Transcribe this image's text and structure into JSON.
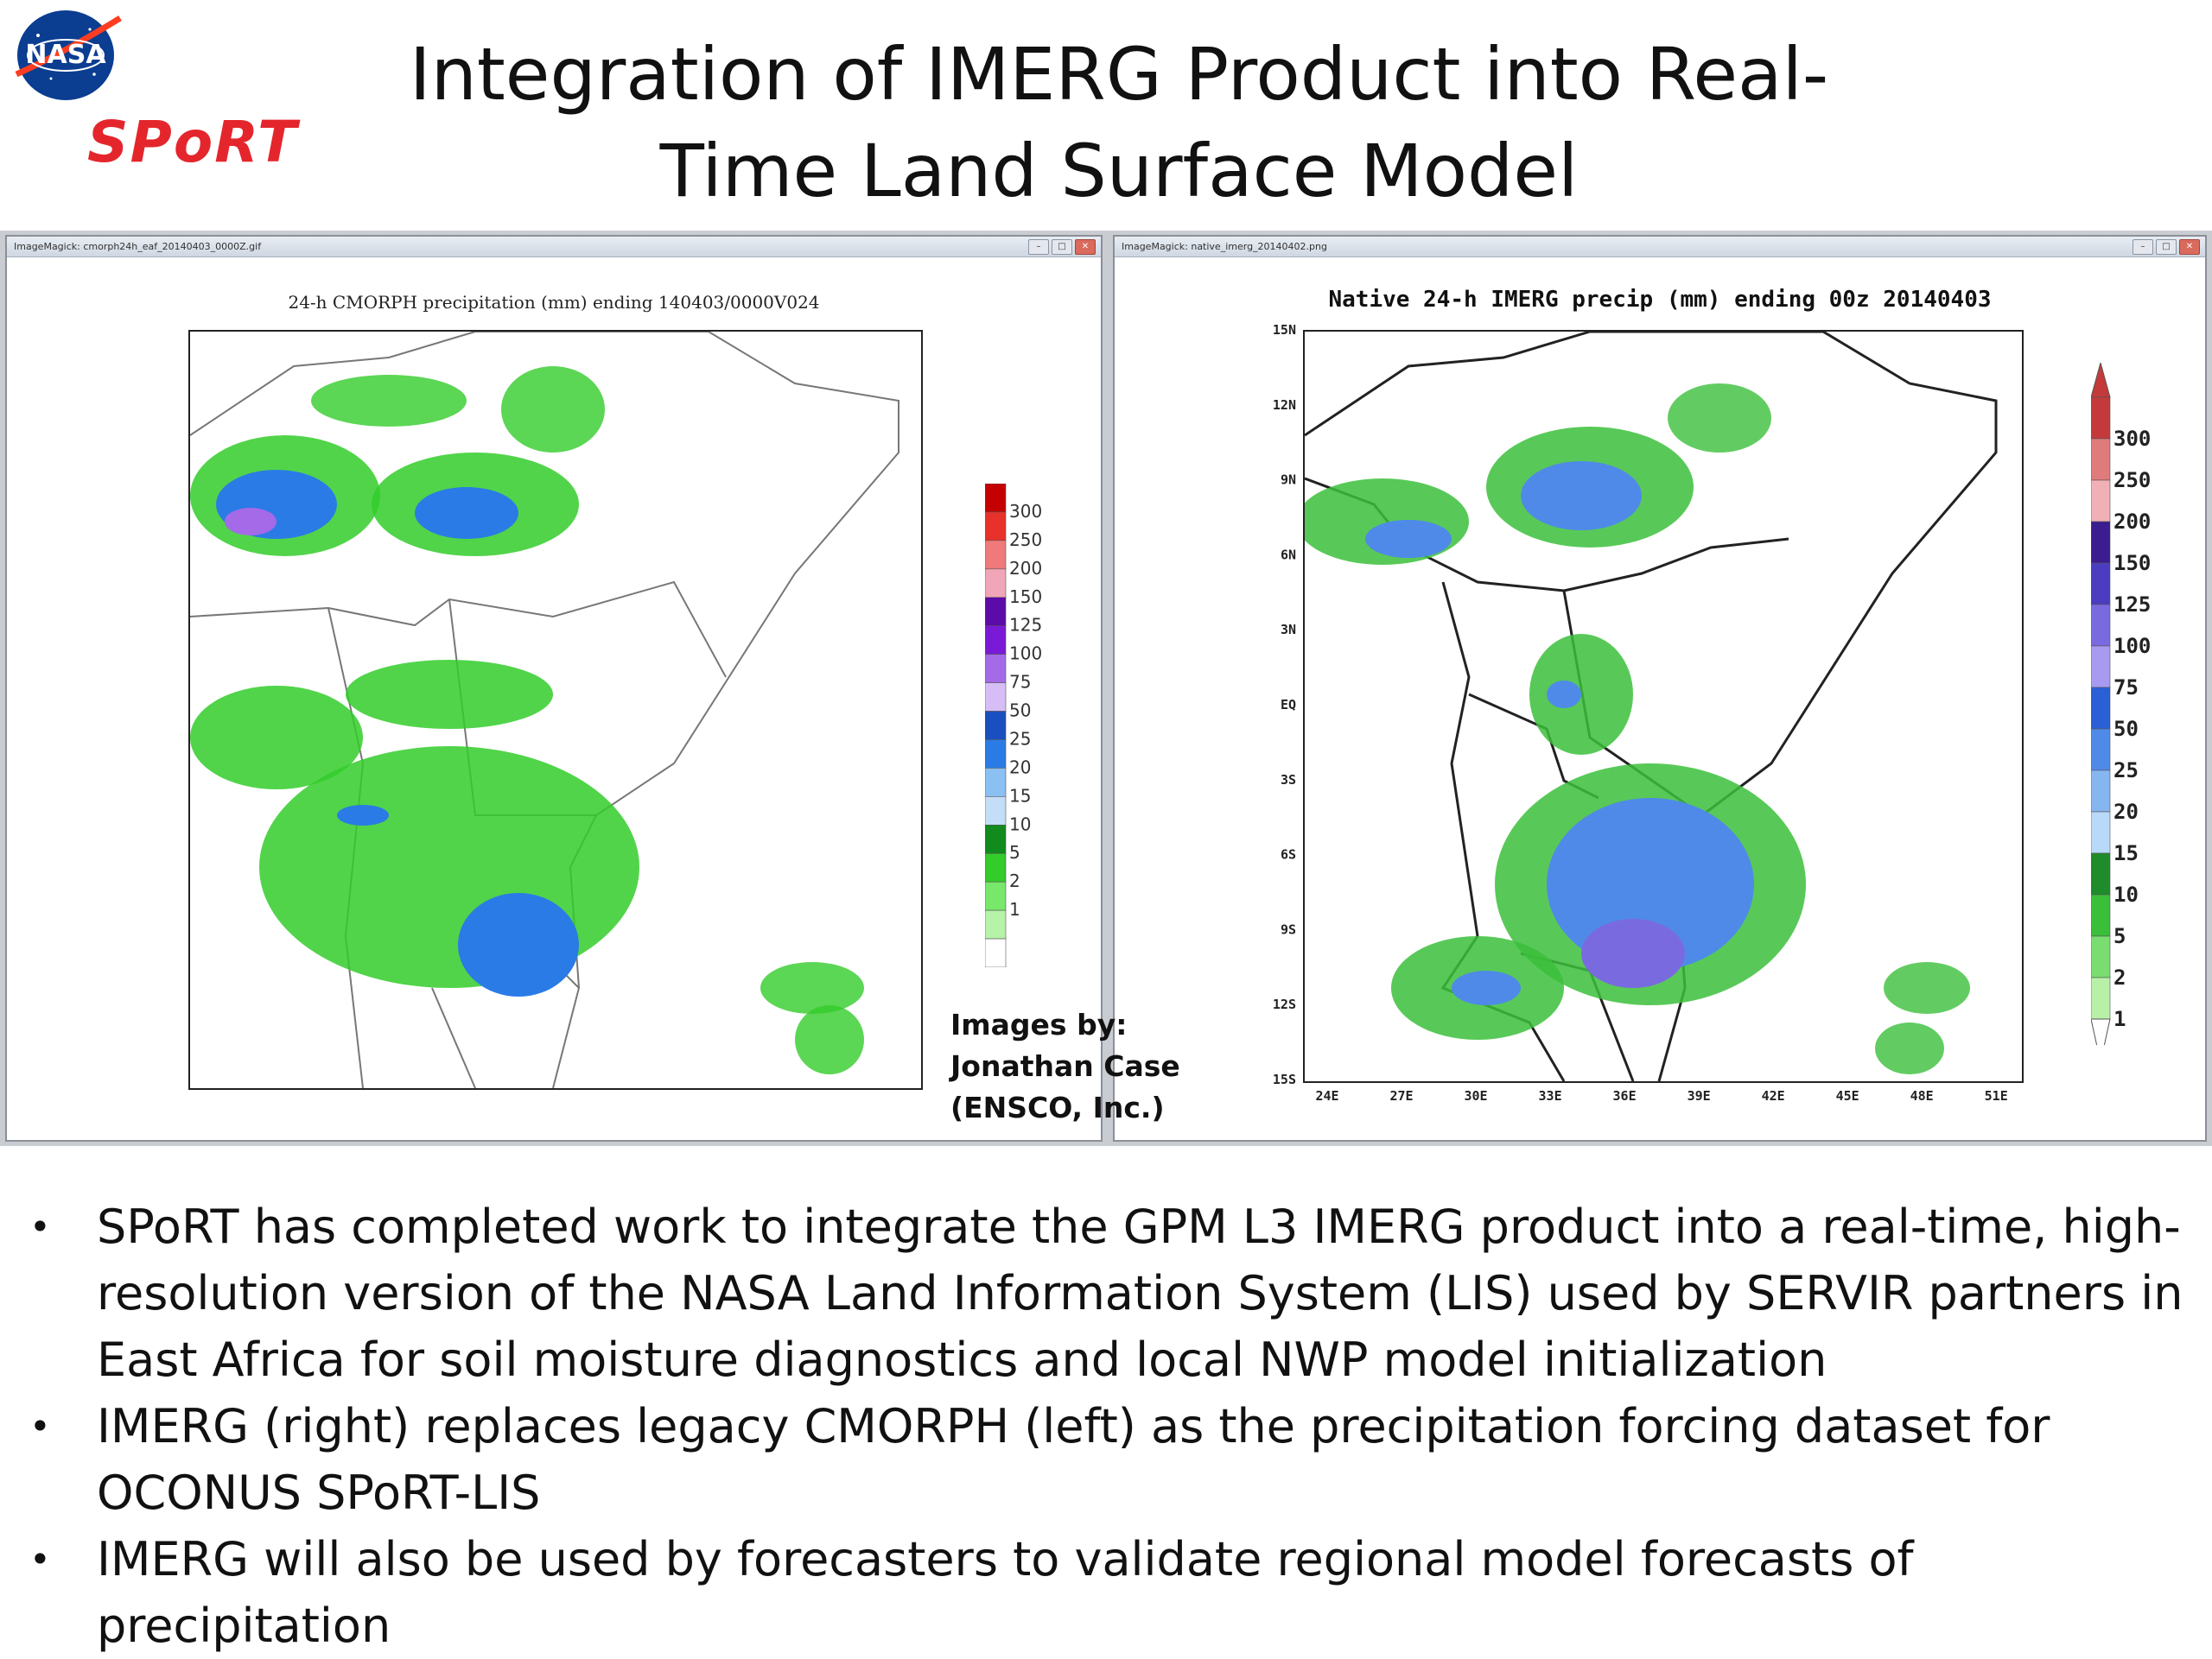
{
  "slide": {
    "title_line1": "Integration of IMERG Product into Real-",
    "title_line2": "Time Land Surface Model",
    "logos": {
      "nasa": "NASA",
      "sport": "SPoRT"
    }
  },
  "left_window": {
    "titlebar": "ImageMagick: cmorph24h_eaf_20140403_0000Z.gif",
    "plot_title": "24-h CMORPH precipitation (mm) ending 140403/0000V024",
    "colorbar_labels": [
      "300",
      "250",
      "200",
      "150",
      "125",
      "100",
      "75",
      "50",
      "25",
      "20",
      "15",
      "10",
      "5",
      "2",
      "1"
    ],
    "colorbar_colors": [
      "#c40000",
      "#e8312a",
      "#f07a7a",
      "#f1a5b8",
      "#5c0aa8",
      "#7a1ad6",
      "#a46ae8",
      "#d7bdf5",
      "#1a4fbf",
      "#2a7be6",
      "#8bc0f2",
      "#c5def7",
      "#118a1e",
      "#33cc2a",
      "#77e86a",
      "#b6f2a8",
      "#ffffff"
    ]
  },
  "right_window": {
    "titlebar": "ImageMagick: native_imerg_20140402.png",
    "plot_title": "Native 24-h IMERG precip (mm) ending 00z 20140403",
    "y_ticks": [
      "15N",
      "12N",
      "9N",
      "6N",
      "3N",
      "EQ",
      "3S",
      "6S",
      "9S",
      "12S",
      "15S"
    ],
    "x_ticks": [
      "24E",
      "27E",
      "30E",
      "33E",
      "36E",
      "39E",
      "42E",
      "45E",
      "48E",
      "51E"
    ],
    "colorbar_labels": [
      "300",
      "250",
      "200",
      "150",
      "125",
      "100",
      "75",
      "50",
      "25",
      "20",
      "15",
      "10",
      "5",
      "2",
      "1"
    ],
    "colorbar_colors": [
      "#c43a3a",
      "#e07b7b",
      "#f0b0b5",
      "#3b1d8f",
      "#4b3cc0",
      "#7a6ae0",
      "#a79af0",
      "#2a5fd6",
      "#4f8ae8",
      "#85b6f0",
      "#b8d9f7",
      "#1e8c2a",
      "#3bbf3b",
      "#79dd70",
      "#b8f0a8"
    ]
  },
  "credit": {
    "line1": "Images by:",
    "line2": "Jonathan Case",
    "line3": "(ENSCO, Inc.)"
  },
  "bullets": [
    "SPoRT has completed work to integrate the GPM L3 IMERG product into a real-time, high-resolution version of the NASA Land Information System (LIS) used by SERVIR partners in East Africa for soil moisture diagnostics and local NWP model initialization",
    "IMERG (right) replaces legacy CMORPH (left) as the precipitation forcing dataset for OCONUS SPoRT-LIS",
    "IMERG will also be used by forecasters to validate regional model forecasts of precipitation"
  ],
  "colors": {
    "nasa_blue": "#0b3d91",
    "nasa_red": "#fc3d21",
    "sport_red": "#e4262c"
  }
}
